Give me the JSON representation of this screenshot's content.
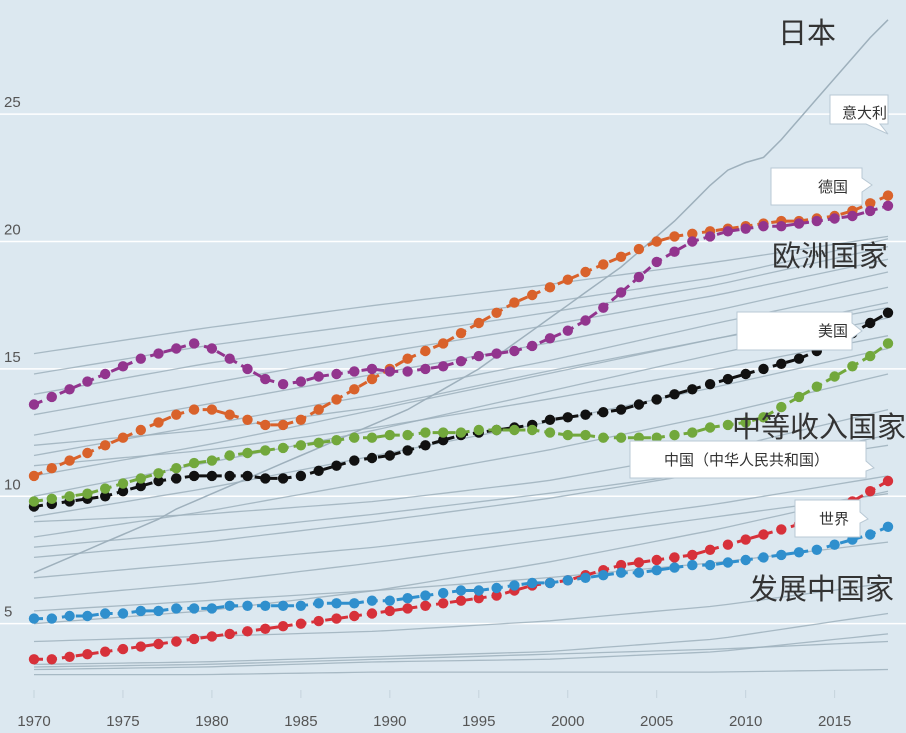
{
  "chart_data": {
    "type": "line",
    "title": "",
    "xlabel": "",
    "ylabel": "",
    "xlim": [
      1969.5,
      2018.8
    ],
    "ylim": [
      2.2,
      29
    ],
    "y_ticks": [
      5,
      10,
      15,
      20,
      25
    ],
    "x_ticks": [
      1970,
      1975,
      1980,
      1985,
      1990,
      1995,
      2000,
      2005,
      2010,
      2015
    ],
    "group_labels": {
      "japan": "日本",
      "europe": "欧洲国家",
      "middle": "中等收入国家",
      "developing": "发展中国家"
    },
    "callouts": {
      "italy": "意大利",
      "germany": "德国",
      "usa": "美国",
      "china": "中国（中华人民共和国）",
      "world": "世界"
    },
    "colors": {
      "background": "#dce8f0",
      "grid": "#ffffff",
      "background_lines": "#9eb0bc",
      "italy": "#d9622b",
      "germany": "#92358e",
      "usa": "#111111",
      "middle": "#72a83c",
      "china": "#d7313a",
      "world": "#2f8fcd"
    },
    "years": [
      1970,
      1971,
      1972,
      1973,
      1974,
      1975,
      1976,
      1977,
      1978,
      1979,
      1980,
      1981,
      1982,
      1983,
      1984,
      1985,
      1986,
      1987,
      1988,
      1989,
      1990,
      1991,
      1992,
      1993,
      1994,
      1995,
      1996,
      1997,
      1998,
      1999,
      2000,
      2001,
      2002,
      2003,
      2004,
      2005,
      2006,
      2007,
      2008,
      2009,
      2010,
      2011,
      2012,
      2013,
      2014,
      2015,
      2016,
      2017,
      2018
    ],
    "series": [
      {
        "name": "意大利",
        "key": "italy",
        "values": [
          10.8,
          11.1,
          11.4,
          11.7,
          12.0,
          12.3,
          12.6,
          12.9,
          13.2,
          13.4,
          13.4,
          13.2,
          13.0,
          12.8,
          12.8,
          13.0,
          13.4,
          13.8,
          14.2,
          14.6,
          15.0,
          15.4,
          15.7,
          16.0,
          16.4,
          16.8,
          17.2,
          17.6,
          17.9,
          18.2,
          18.5,
          18.8,
          19.1,
          19.4,
          19.7,
          20.0,
          20.2,
          20.3,
          20.4,
          20.5,
          20.6,
          20.7,
          20.8,
          20.8,
          20.9,
          21.0,
          21.2,
          21.5,
          21.8
        ]
      },
      {
        "name": "德国",
        "key": "germany",
        "values": [
          13.6,
          13.9,
          14.2,
          14.5,
          14.8,
          15.1,
          15.4,
          15.6,
          15.8,
          16.0,
          15.8,
          15.4,
          15.0,
          14.6,
          14.4,
          14.5,
          14.7,
          14.8,
          14.9,
          15.0,
          14.9,
          14.9,
          15.0,
          15.1,
          15.3,
          15.5,
          15.6,
          15.7,
          15.9,
          16.2,
          16.5,
          16.9,
          17.4,
          18.0,
          18.6,
          19.2,
          19.6,
          20.0,
          20.2,
          20.4,
          20.5,
          20.6,
          20.6,
          20.7,
          20.8,
          20.9,
          21.0,
          21.2,
          21.4
        ]
      },
      {
        "name": "美国",
        "key": "usa",
        "values": [
          9.6,
          9.7,
          9.8,
          9.9,
          10.0,
          10.2,
          10.4,
          10.6,
          10.7,
          10.8,
          10.8,
          10.8,
          10.8,
          10.7,
          10.7,
          10.8,
          11.0,
          11.2,
          11.4,
          11.5,
          11.6,
          11.8,
          12.0,
          12.2,
          12.4,
          12.5,
          12.6,
          12.7,
          12.8,
          13.0,
          13.1,
          13.2,
          13.3,
          13.4,
          13.6,
          13.8,
          14.0,
          14.2,
          14.4,
          14.6,
          14.8,
          15.0,
          15.2,
          15.4,
          15.7,
          16.0,
          16.4,
          16.8,
          17.2
        ]
      },
      {
        "name": "中等收入国家",
        "key": "middle",
        "values": [
          9.8,
          9.9,
          10.0,
          10.1,
          10.3,
          10.5,
          10.7,
          10.9,
          11.1,
          11.3,
          11.4,
          11.6,
          11.7,
          11.8,
          11.9,
          12.0,
          12.1,
          12.2,
          12.3,
          12.3,
          12.4,
          12.4,
          12.5,
          12.5,
          12.5,
          12.6,
          12.6,
          12.6,
          12.6,
          12.5,
          12.4,
          12.4,
          12.3,
          12.3,
          12.3,
          12.3,
          12.4,
          12.5,
          12.7,
          12.8,
          12.9,
          13.1,
          13.5,
          13.9,
          14.3,
          14.7,
          15.1,
          15.5,
          16.0
        ]
      },
      {
        "name": "中国（中华人民共和国）",
        "key": "china",
        "values": [
          3.6,
          3.6,
          3.7,
          3.8,
          3.9,
          4.0,
          4.1,
          4.2,
          4.3,
          4.4,
          4.5,
          4.6,
          4.7,
          4.8,
          4.9,
          5.0,
          5.1,
          5.2,
          5.3,
          5.4,
          5.5,
          5.6,
          5.7,
          5.8,
          5.9,
          6.0,
          6.1,
          6.3,
          6.5,
          6.6,
          6.7,
          6.9,
          7.1,
          7.3,
          7.4,
          7.5,
          7.6,
          7.7,
          7.9,
          8.1,
          8.3,
          8.5,
          8.7,
          8.9,
          9.1,
          9.4,
          9.8,
          10.2,
          10.6
        ]
      },
      {
        "name": "世界",
        "key": "world",
        "values": [
          5.2,
          5.2,
          5.3,
          5.3,
          5.4,
          5.4,
          5.5,
          5.5,
          5.6,
          5.6,
          5.6,
          5.7,
          5.7,
          5.7,
          5.7,
          5.7,
          5.8,
          5.8,
          5.8,
          5.9,
          5.9,
          6.0,
          6.1,
          6.2,
          6.3,
          6.3,
          6.4,
          6.5,
          6.6,
          6.6,
          6.7,
          6.8,
          6.9,
          7.0,
          7.0,
          7.1,
          7.2,
          7.3,
          7.3,
          7.4,
          7.5,
          7.6,
          7.7,
          7.8,
          7.9,
          8.1,
          8.3,
          8.5,
          8.8
        ]
      },
      {
        "name": "日本",
        "key": "japan",
        "background": true,
        "values": [
          7.0,
          7.3,
          7.6,
          7.9,
          8.2,
          8.5,
          8.8,
          9.1,
          9.5,
          9.8,
          10.1,
          10.4,
          10.7,
          11.0,
          11.3,
          11.6,
          11.9,
          12.2,
          12.5,
          12.8,
          13.1,
          13.4,
          13.8,
          14.2,
          14.6,
          15.0,
          15.5,
          16.0,
          16.5,
          17.0,
          17.5,
          18.0,
          18.5,
          19.0,
          19.6,
          20.2,
          20.8,
          21.5,
          22.2,
          22.8,
          23.1,
          23.3,
          24.0,
          24.8,
          25.6,
          26.4,
          27.2,
          28.0,
          28.7
        ]
      }
    ]
  }
}
